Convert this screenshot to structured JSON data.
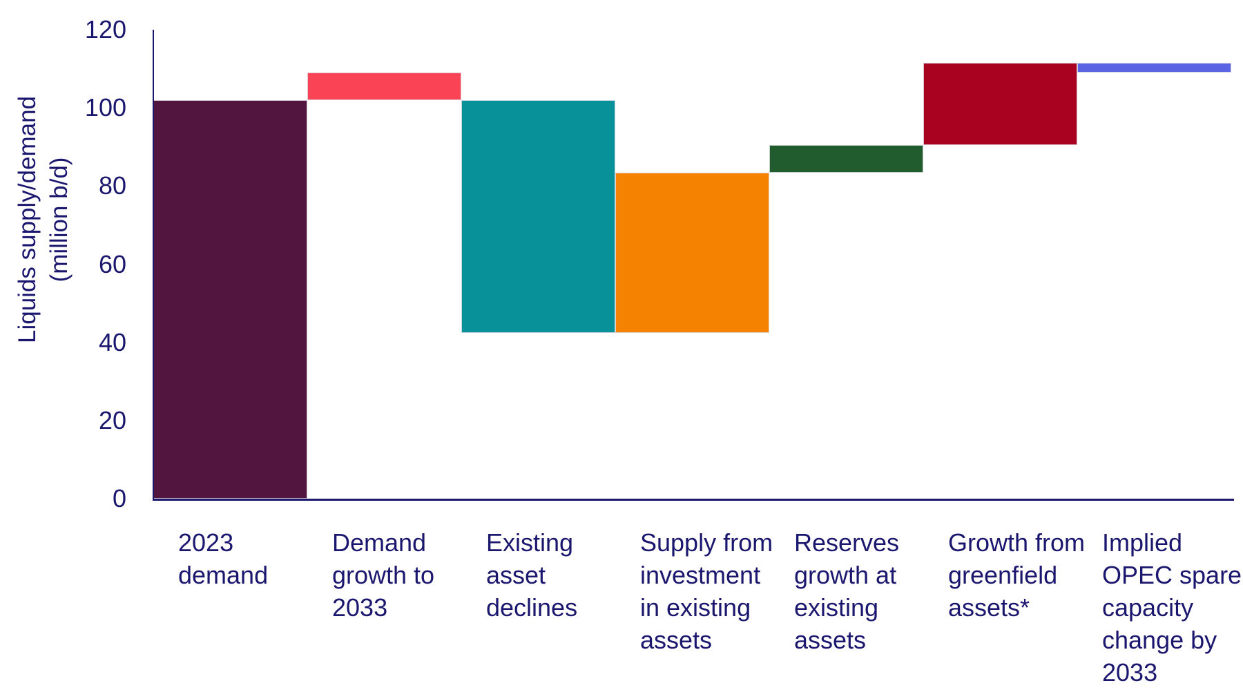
{
  "chart_data": {
    "type": "bar",
    "variant": "waterfall",
    "title": "",
    "xlabel": "",
    "ylabel": "Liquids supply/demand (million b/d)",
    "ylabel_lines": [
      "Liquids supply/demand",
      "(million b/d)"
    ],
    "ylim": [
      0,
      120
    ],
    "yticks": [
      0,
      20,
      40,
      60,
      80,
      100,
      120
    ],
    "grid": false,
    "legend": false,
    "axis_color": "#1B176E",
    "text_color": "#1B176E",
    "unit": "million b/d",
    "bars": [
      {
        "label": "2023 demand",
        "label_lines": [
          "2023",
          "demand"
        ],
        "start": 0,
        "end": 102,
        "delta": 102,
        "color": "#511540"
      },
      {
        "label": "Demand growth to 2033",
        "label_lines": [
          "Demand",
          "growth to",
          "2033"
        ],
        "start": 102,
        "end": 109,
        "delta": 7,
        "color": "#FA4355"
      },
      {
        "label": "Existing asset declines",
        "label_lines": [
          "Existing",
          "asset",
          "declines"
        ],
        "start": 102,
        "end": 42.5,
        "delta": -59.5,
        "color": "#089199"
      },
      {
        "label": "Supply from investment in existing assets",
        "label_lines": [
          "Supply from",
          "investment",
          "in existing",
          "assets"
        ],
        "start": 42.5,
        "end": 83.5,
        "delta": 41,
        "color": "#F58200"
      },
      {
        "label": "Reserves growth at existing assets",
        "label_lines": [
          "Reserves",
          "growth at",
          "existing",
          "assets"
        ],
        "start": 83.5,
        "end": 90.5,
        "delta": 7,
        "color": "#205C2D"
      },
      {
        "label": "Growth from greenfield assets*",
        "label_lines": [
          "Growth from",
          "greenfield",
          "assets*"
        ],
        "start": 90.5,
        "end": 111.5,
        "delta": 21,
        "color": "#A90220"
      },
      {
        "label": "Implied OPEC spare capacity change by 2033",
        "label_lines": [
          "Implied",
          "OPEC spare",
          "capacity",
          "change by",
          "2033"
        ],
        "start": 109,
        "end": 111.5,
        "delta": 2.5,
        "color": "#5A63E2"
      }
    ]
  }
}
